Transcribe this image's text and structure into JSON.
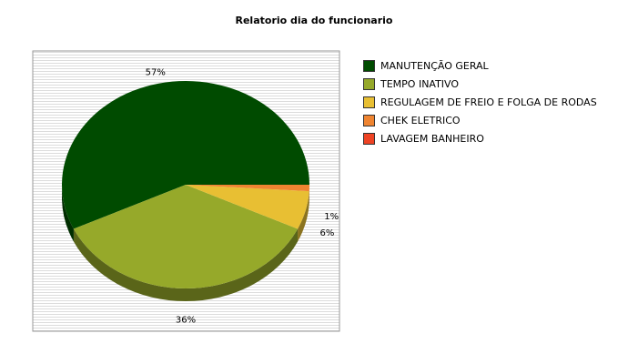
{
  "chart_data": {
    "type": "pie",
    "title": "Relatorio dia do funcionario",
    "slices": [
      {
        "label": "MANUTENÇÃO GERAL",
        "value": 57,
        "display": "57%",
        "color": "#004b00"
      },
      {
        "label": "TEMPO INATIVO",
        "value": 36,
        "display": "36%",
        "color": "#96a92a"
      },
      {
        "label": "REGULAGEM DE FREIO E FOLGA DE RODAS",
        "value": 6,
        "display": "6%",
        "color": "#e8bf33"
      },
      {
        "label": "CHEK ELETRICO",
        "value": 1,
        "display": "1%",
        "color": "#ef8431"
      },
      {
        "label": "LAVAGEM BANHEIRO",
        "value": 0,
        "display": "",
        "color": "#ee4324"
      }
    ],
    "legend_position": "right",
    "style": "3d",
    "grid": true
  }
}
